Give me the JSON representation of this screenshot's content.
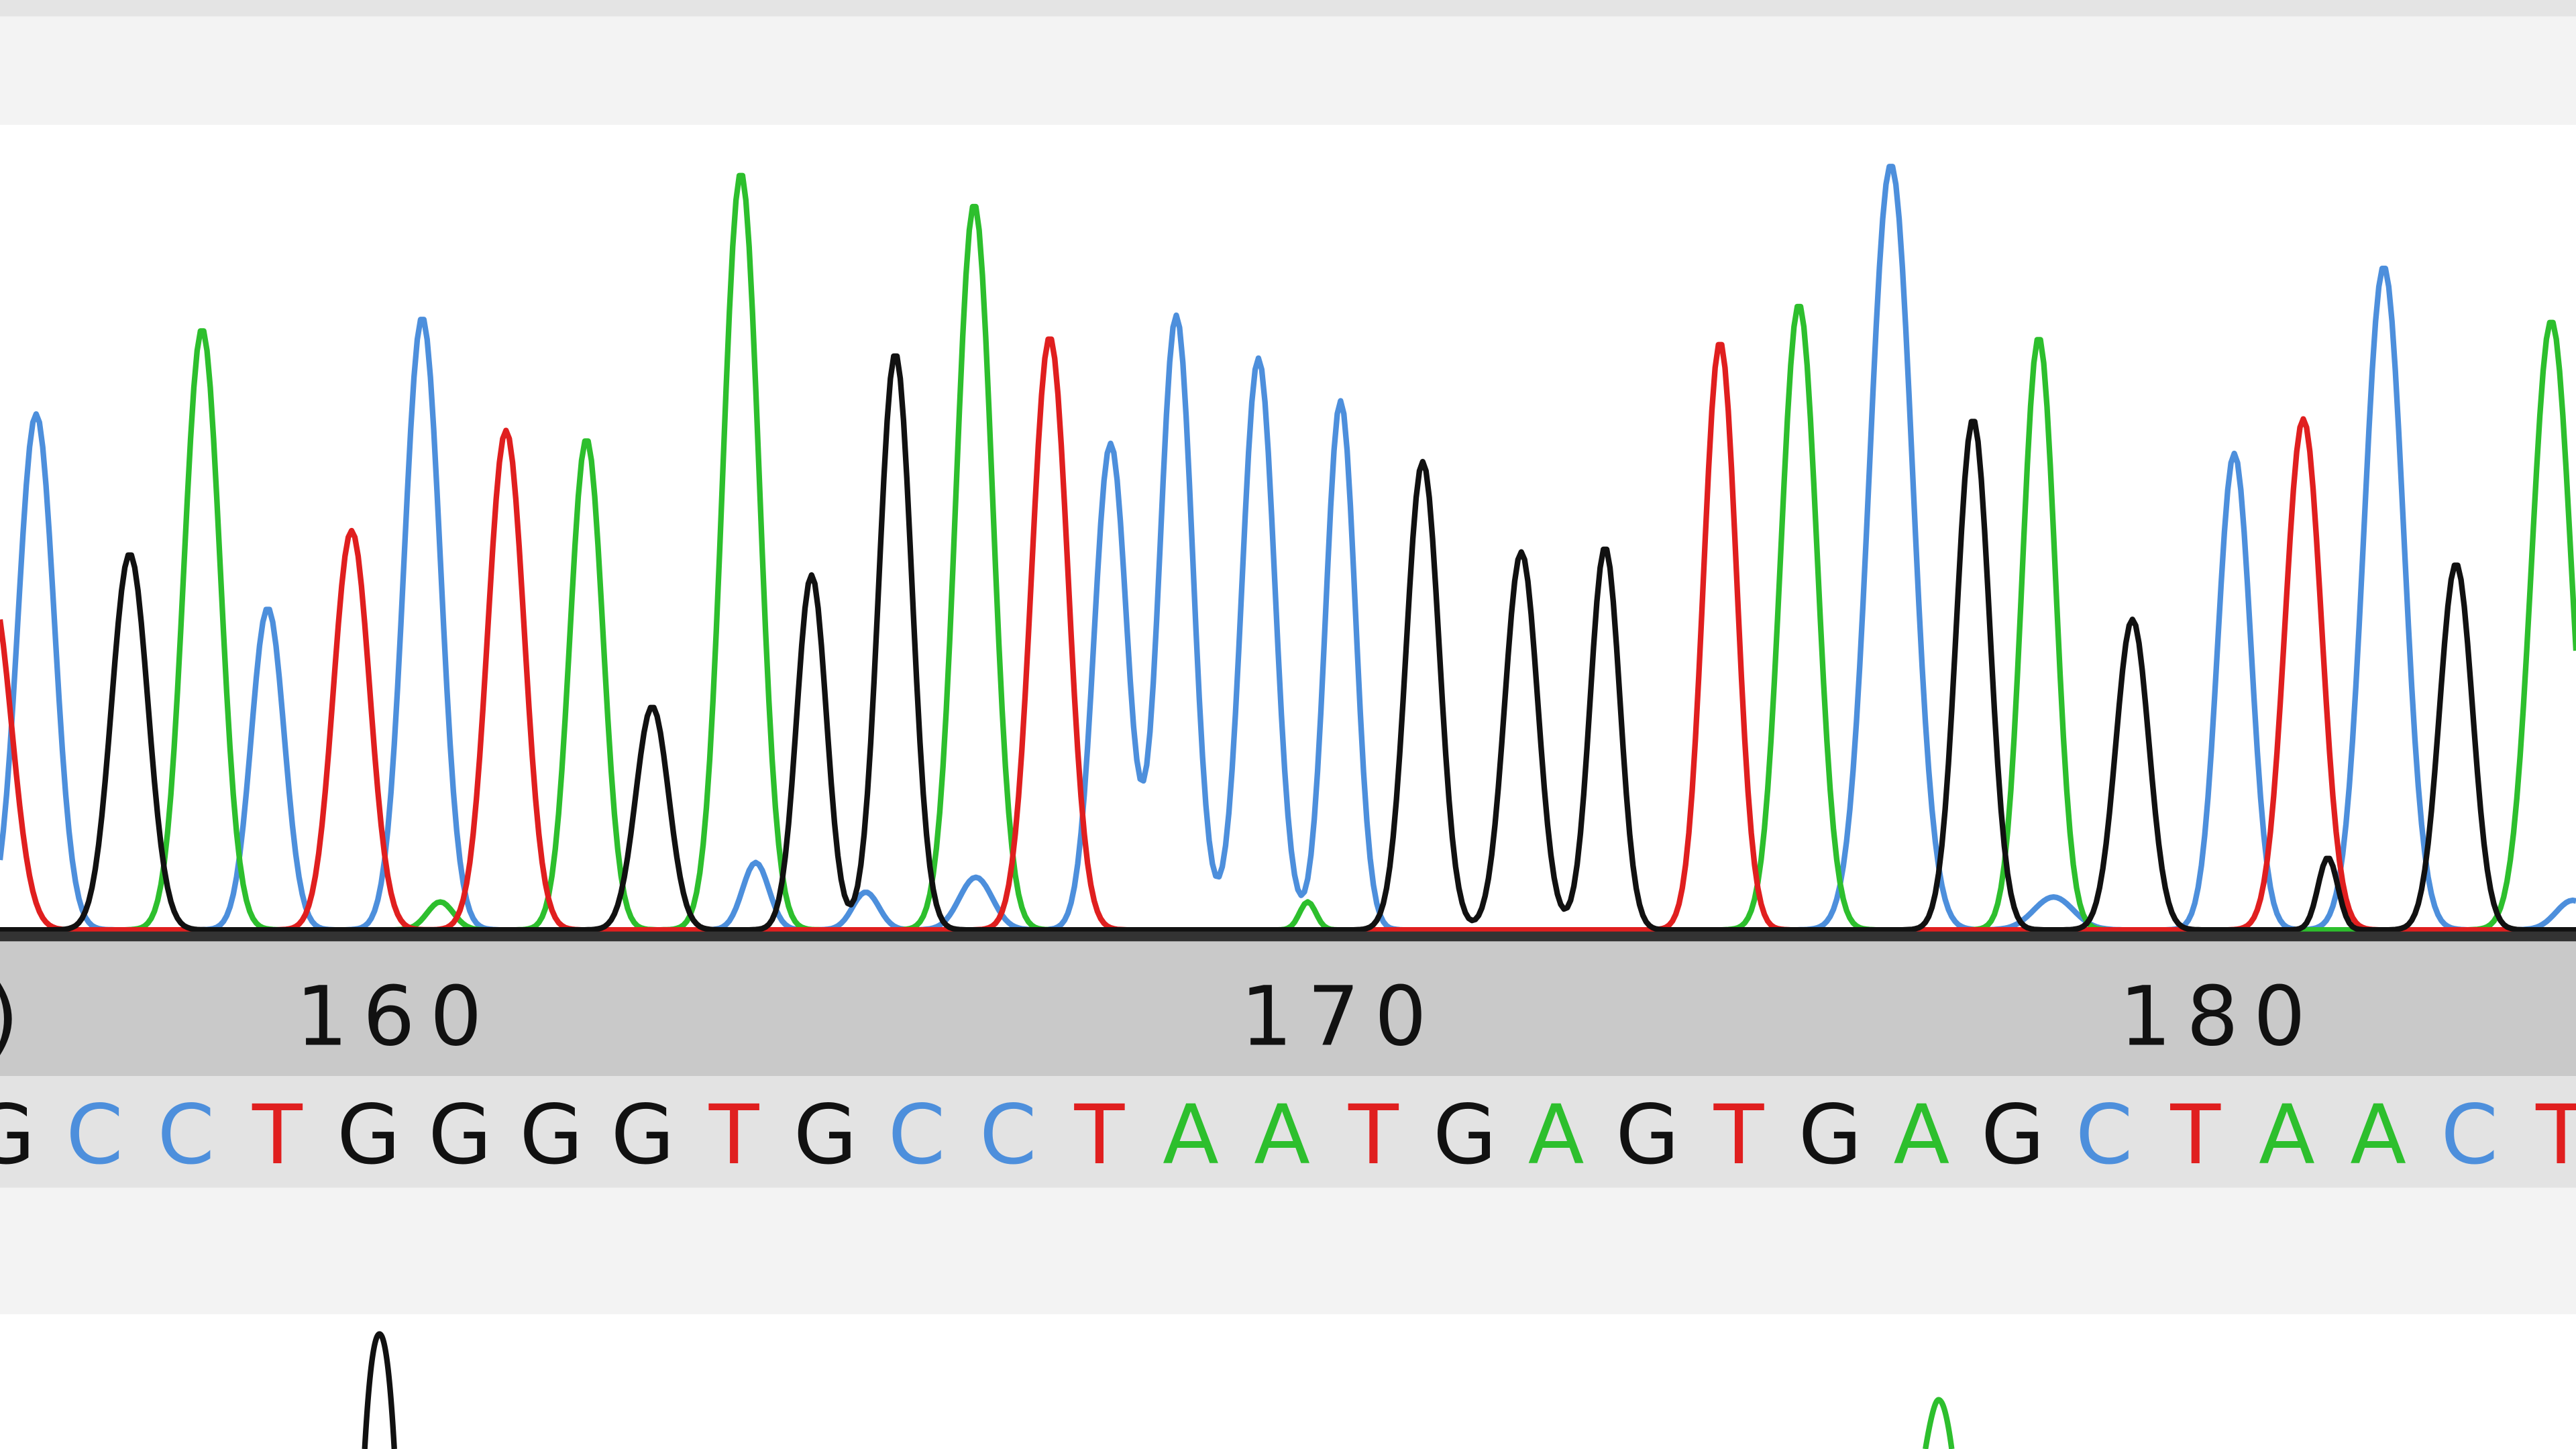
{
  "ruler": {
    "labels": [
      ")",
      "160",
      "170",
      "180"
    ]
  },
  "sequence": {
    "bases": [
      "G",
      "C",
      "C",
      "T",
      "G",
      "G",
      "G",
      "G",
      "T",
      "G",
      "C",
      "C",
      "T",
      "A",
      "A",
      "T",
      "G",
      "A",
      "G",
      "T",
      "G",
      "A",
      "G",
      "C",
      "T",
      "A",
      "A",
      "C",
      "T"
    ],
    "base_colors": {
      "A": "#2dbf2d",
      "C": "#4d8fdc",
      "G": "#111111",
      "T": "#e01f1f"
    }
  }
}
